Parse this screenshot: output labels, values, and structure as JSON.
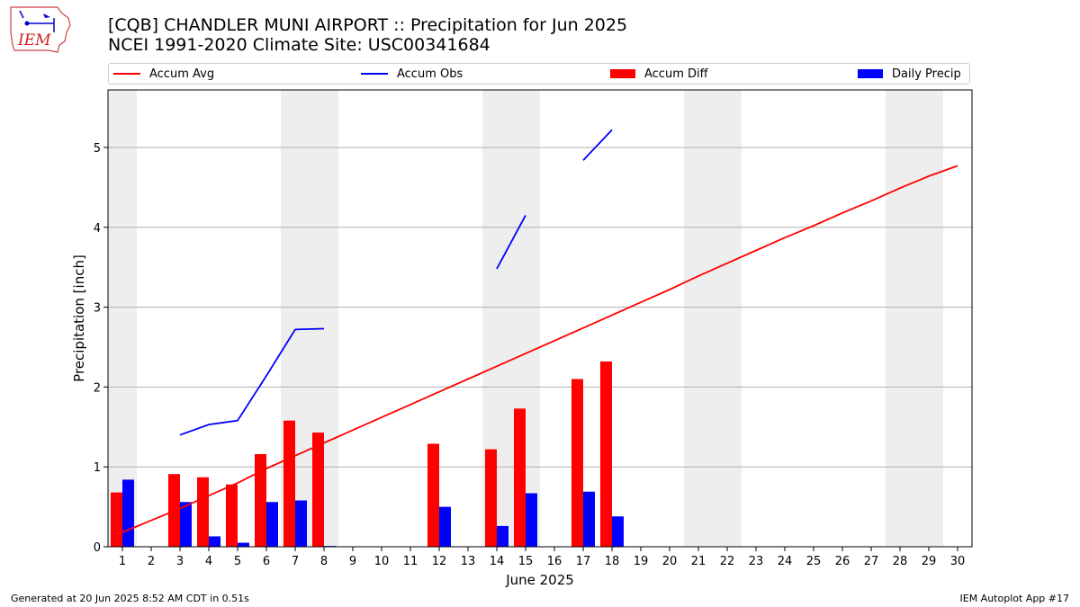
{
  "logo": {
    "text": "IEM"
  },
  "title_line1": "[CQB] CHANDLER MUNI AIRPORT :: Precipitation for Jun 2025",
  "title_line2": "NCEI 1991-2020 Climate Site: USC00341684",
  "legend": [
    {
      "label": "Accum Avg",
      "kind": "line",
      "color": "#ff0000"
    },
    {
      "label": "Accum Obs",
      "kind": "line",
      "color": "#0000ff"
    },
    {
      "label": "Accum Diff",
      "kind": "box",
      "color": "#ff0000"
    },
    {
      "label": "Daily Precip",
      "kind": "box",
      "color": "#0000ff"
    }
  ],
  "footer_left": "Generated at 20 Jun 2025 8:52 AM CDT in 0.51s",
  "footer_right": "IEM Autoplot App #17",
  "chart_data": {
    "type": "bar",
    "xlabel": "June 2025",
    "ylabel": "Precipitation [inch]",
    "x": [
      1,
      2,
      3,
      4,
      5,
      6,
      7,
      8,
      9,
      10,
      11,
      12,
      13,
      14,
      15,
      16,
      17,
      18,
      19,
      20,
      21,
      22,
      23,
      24,
      25,
      26,
      27,
      28,
      29,
      30
    ],
    "xlim": [
      0.5,
      30.5
    ],
    "ylim": [
      0,
      5.72
    ],
    "yticks": [
      0,
      1,
      2,
      3,
      4,
      5
    ],
    "weekend_bands": [
      [
        0.5,
        1.5
      ],
      [
        6.5,
        8.5
      ],
      [
        13.5,
        15.5
      ],
      [
        20.5,
        22.5
      ],
      [
        27.5,
        29.5
      ]
    ],
    "grid": "y",
    "series": [
      {
        "name": "Accum Avg",
        "kind": "line",
        "color": "#ff0000",
        "values": [
          0.18,
          0.33,
          0.48,
          0.64,
          0.8,
          0.98,
          1.14,
          1.3,
          1.46,
          1.62,
          1.78,
          1.94,
          2.1,
          2.26,
          2.42,
          2.58,
          2.74,
          2.9,
          3.06,
          3.22,
          3.39,
          3.55,
          3.71,
          3.87,
          4.02,
          4.18,
          4.33,
          4.49,
          4.64,
          4.77
        ]
      },
      {
        "name": "Accum Obs",
        "kind": "line",
        "color": "#0000ff",
        "values": [
          null,
          null,
          1.4,
          1.53,
          1.58,
          2.14,
          2.72,
          2.73,
          null,
          null,
          null,
          null,
          null,
          3.48,
          4.15,
          null,
          4.84,
          5.22,
          null,
          null,
          null,
          null,
          null,
          null,
          null,
          null,
          null,
          null,
          null,
          null
        ]
      },
      {
        "name": "Accum Diff",
        "kind": "bar",
        "color": "#ff0000",
        "values": [
          0.68,
          null,
          0.91,
          0.87,
          0.78,
          1.16,
          1.58,
          1.43,
          null,
          null,
          null,
          1.29,
          null,
          1.22,
          1.73,
          null,
          2.1,
          2.32,
          null,
          null,
          null,
          null,
          null,
          null,
          null,
          null,
          null,
          null,
          null,
          null
        ]
      },
      {
        "name": "Daily Precip",
        "kind": "bar",
        "color": "#0000ff",
        "values": [
          0.84,
          null,
          0.56,
          0.13,
          0.05,
          0.56,
          0.58,
          0.01,
          null,
          null,
          null,
          0.5,
          null,
          0.26,
          0.67,
          null,
          0.69,
          0.38,
          null,
          null,
          null,
          null,
          null,
          null,
          null,
          null,
          null,
          null,
          null,
          null
        ]
      }
    ]
  }
}
